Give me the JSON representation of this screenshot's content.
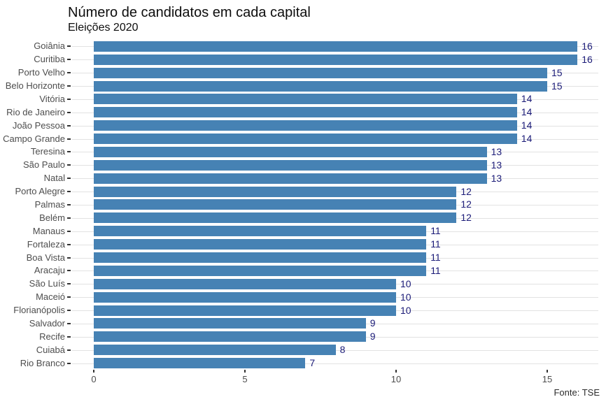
{
  "chart_data": {
    "type": "bar",
    "orientation": "horizontal",
    "title": "Número de candidatos em cada capital",
    "subtitle": "Eleições 2020",
    "caption": "Fonte: TSE",
    "xlabel": "",
    "ylabel": "",
    "xlim": [
      0,
      16.9
    ],
    "x_ticks": [
      0,
      5,
      10,
      15
    ],
    "grid": "horizontal-major-only",
    "legend": "none",
    "categories": [
      "Goiânia",
      "Curitiba",
      "Porto Velho",
      "Belo Horizonte",
      "Vitória",
      "Rio de Janeiro",
      "João Pessoa",
      "Campo Grande",
      "Teresina",
      "São Paulo",
      "Natal",
      "Porto Alegre",
      "Palmas",
      "Belém",
      "Manaus",
      "Fortaleza",
      "Boa Vista",
      "Aracaju",
      "São Luís",
      "Maceió",
      "Florianópolis",
      "Salvador",
      "Recife",
      "Cuiabá",
      "Rio Branco"
    ],
    "values": [
      16,
      16,
      15,
      15,
      14,
      14,
      14,
      14,
      13,
      13,
      13,
      12,
      12,
      12,
      11,
      11,
      11,
      11,
      10,
      10,
      10,
      9,
      9,
      8,
      7
    ],
    "bar_color": "#4682B4",
    "value_label_color": "#1b1b78",
    "axis_text_color": "#4d4d4d",
    "gridline_color": "#e2e2e2"
  }
}
